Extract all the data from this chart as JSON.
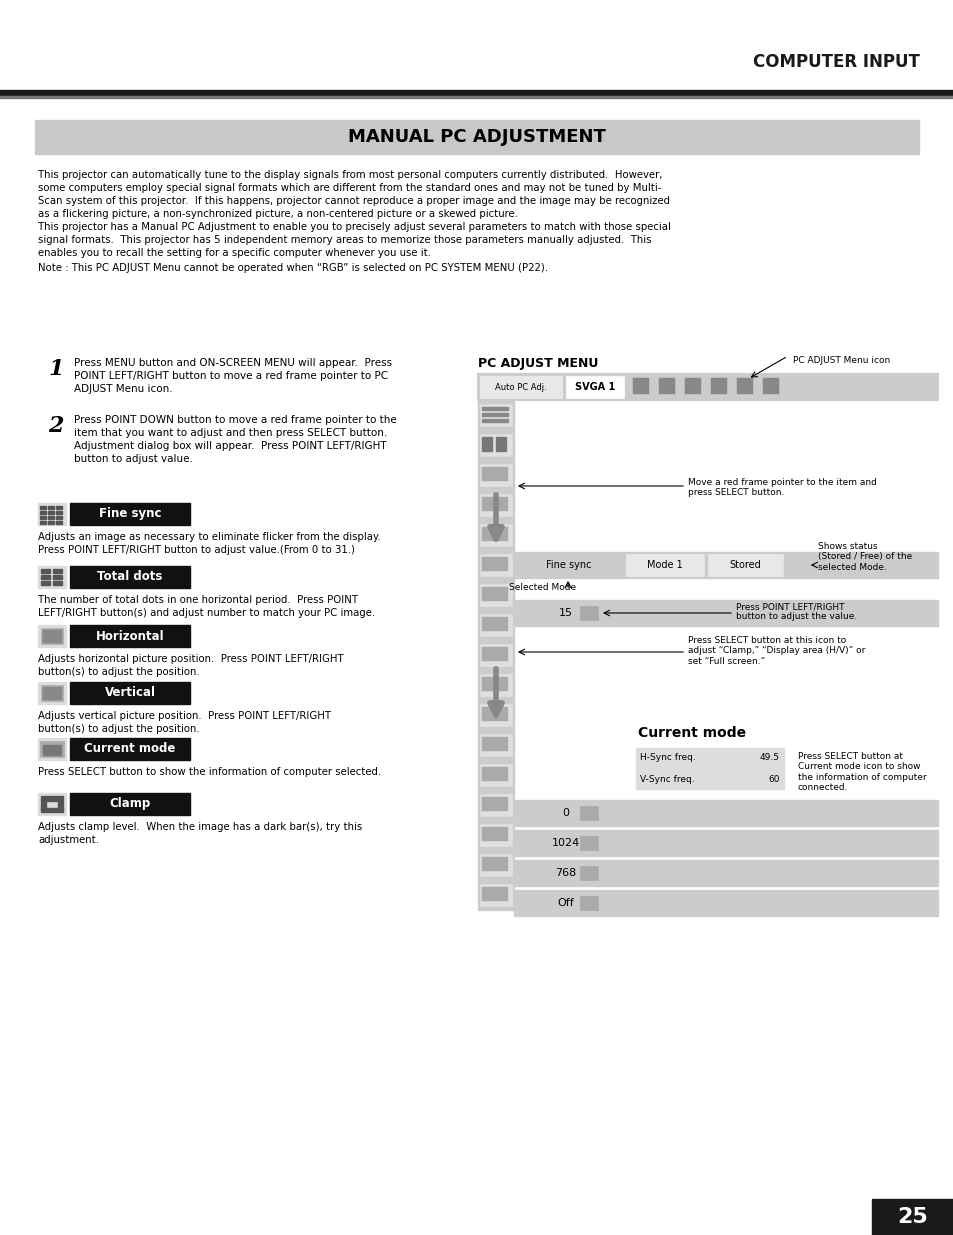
{
  "page_title": "COMPUTER INPUT",
  "section_title": "MANUAL PC ADJUSTMENT",
  "page_number": "25",
  "bg_color": "#ffffff",
  "intro_text_lines": [
    "This projector can automatically tune to the display signals from most personal computers currently distributed.  However,",
    "some computers employ special signal formats which are different from the standard ones and may not be tuned by Multi-",
    "Scan system of this projector.  If this happens, projector cannot reproduce a proper image and the image may be recognized",
    "as a flickering picture, a non-synchronized picture, a non-centered picture or a skewed picture.",
    "This projector has a Manual PC Adjustment to enable you to precisely adjust several parameters to match with those special",
    "signal formats.  This projector has 5 independent memory areas to memorize those parameters manually adjusted.  This",
    "enables you to recall the setting for a specific computer whenever you use it."
  ],
  "note_text": "Note : This PC ADJUST Menu cannot be operated when “RGB” is selected on PC SYSTEM MENU (P22).",
  "step1_lines": [
    "Press MENU button and ON-SCREEN MENU will appear.  Press",
    "POINT LEFT/RIGHT button to move a red frame pointer to PC",
    "ADJUST Menu icon."
  ],
  "step2_lines": [
    "Press POINT DOWN button to move a red frame pointer to the",
    "item that you want to adjust and then press SELECT button.",
    "Adjustment dialog box will appear.  Press POINT LEFT/RIGHT",
    "button to adjust value."
  ],
  "items": [
    {
      "label": "Fine sync",
      "desc_lines": [
        "Adjusts an image as necessary to eliminate flicker from the display.",
        "Press POINT LEFT/RIGHT button to adjust value.(From 0 to 31.)"
      ],
      "icon_type": "fine_sync"
    },
    {
      "label": "Total dots",
      "desc_lines": [
        "The number of total dots in one horizontal period.  Press POINT",
        "LEFT/RIGHT button(s) and adjust number to match your PC image."
      ],
      "icon_type": "total_dots"
    },
    {
      "label": "Horizontal",
      "desc_lines": [
        "Adjusts horizontal picture position.  Press POINT LEFT/RIGHT",
        "button(s) to adjust the position."
      ],
      "icon_type": "screen"
    },
    {
      "label": "Vertical",
      "desc_lines": [
        "Adjusts vertical picture position.  Press POINT LEFT/RIGHT",
        "button(s) to adjust the position."
      ],
      "icon_type": "screen"
    },
    {
      "label": "Current mode",
      "desc_lines": [
        "Press SELECT button to show the information of computer selected."
      ],
      "icon_type": "current_mode"
    },
    {
      "label": "Clamp",
      "desc_lines": [
        "Adjusts clamp level.  When the image has a dark bar(s), try this",
        "adjustment."
      ],
      "icon_type": "clamp"
    }
  ],
  "right_title": "PC ADJUST MENU",
  "menu_bar_btn1": "Auto PC Adj.",
  "menu_bar_btn2": "SVGA 1",
  "pc_adjust_note": "PC ADJUST Menu icon",
  "move_note_lines": [
    "Move a red frame pointer to the item and",
    "press SELECT button."
  ],
  "selected_mode": "Selected Mode",
  "status_note_lines": [
    "Shows status",
    "(Stored / Free) of the",
    "selected Mode."
  ],
  "fine_sync_lbl": "Fine sync",
  "mode1_lbl": "Mode 1",
  "stored_lbl": "Stored",
  "val15": "15",
  "point_lr_lines": [
    "Press POINT LEFT/RIGHT",
    "button to adjust the value."
  ],
  "select_note_lines": [
    "Press SELECT button at this icon to",
    "adjust “Clamp,” “Display area (H/V)” or",
    "set “Full screen.”"
  ],
  "current_mode_title": "Current mode",
  "hsync_label": "H-Sync freq.",
  "hsync_val": "49.5",
  "vsync_label": "V-Sync freq.",
  "vsync_val": "60",
  "current_mode_note_lines": [
    "Press SELECT button at",
    "Current mode icon to show",
    "the information of computer",
    "connected."
  ],
  "bottom_values": [
    "0",
    "1024",
    "768",
    "Off"
  ]
}
